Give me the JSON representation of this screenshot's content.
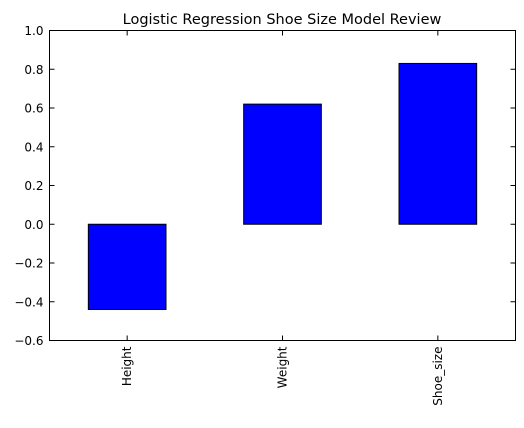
{
  "chart_data": {
    "type": "bar",
    "title": "Logistic Regression Shoe Size Model Review",
    "xlabel": "",
    "ylabel": "",
    "categories": [
      "Height",
      "Weight",
      "Shoe_size"
    ],
    "values": [
      -0.44,
      0.62,
      0.83
    ],
    "ylim": [
      -0.6,
      1.0
    ],
    "yticks": [
      -0.6,
      -0.4,
      -0.2,
      0.0,
      0.2,
      0.4,
      0.6,
      0.8,
      1.0
    ],
    "ytick_labels": [
      "−0.6",
      "−0.4",
      "−0.2",
      "0.0",
      "0.2",
      "0.4",
      "0.6",
      "0.8",
      "1.0"
    ],
    "grid": false,
    "legend": "none",
    "colors": {
      "bar_fill": "#0000ff",
      "bar_edge": "#000000",
      "axes": "#000000",
      "background": "#ffffff"
    }
  }
}
